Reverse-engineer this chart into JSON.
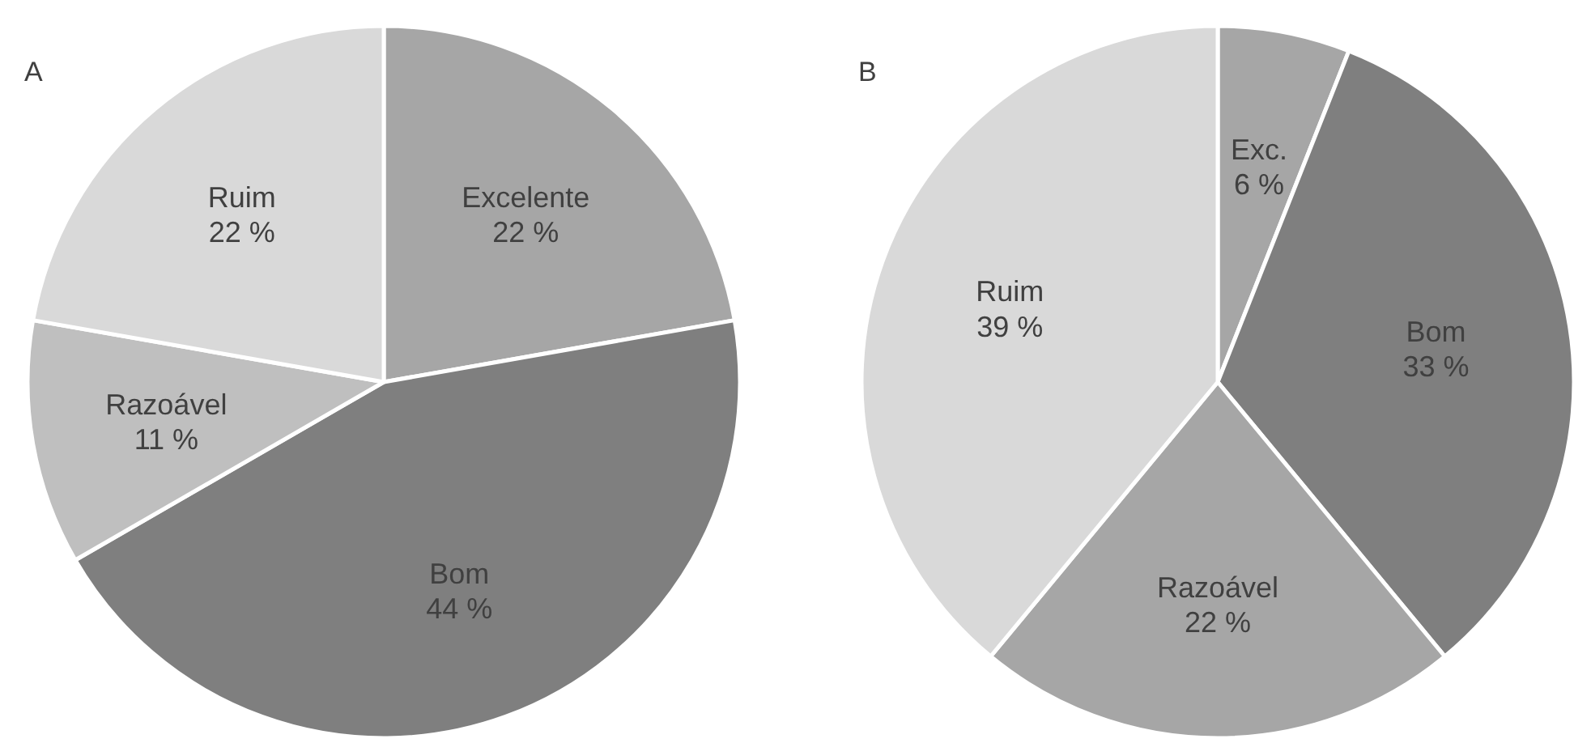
{
  "chart_data": [
    {
      "type": "pie",
      "title": "A",
      "categories": [
        "Excelente",
        "Bom",
        "Razoável",
        "Ruim"
      ],
      "values": [
        22,
        44,
        11,
        22
      ],
      "value_labels": [
        "22 %",
        "44 %",
        "11 %",
        "22 %"
      ],
      "colors": [
        "#a6a6a6",
        "#7f7f7f",
        "#bfbfbf",
        "#d9d9d9"
      ]
    },
    {
      "type": "pie",
      "title": "B",
      "categories": [
        "Exc.",
        "Bom",
        "Razoável",
        "Ruim"
      ],
      "values": [
        6,
        33,
        22,
        39
      ],
      "value_labels": [
        "6 %",
        "33 %",
        "22 %",
        "39 %"
      ],
      "colors": [
        "#a6a6a6",
        "#7f7f7f",
        "#a6a6a6",
        "#d9d9d9"
      ]
    }
  ]
}
